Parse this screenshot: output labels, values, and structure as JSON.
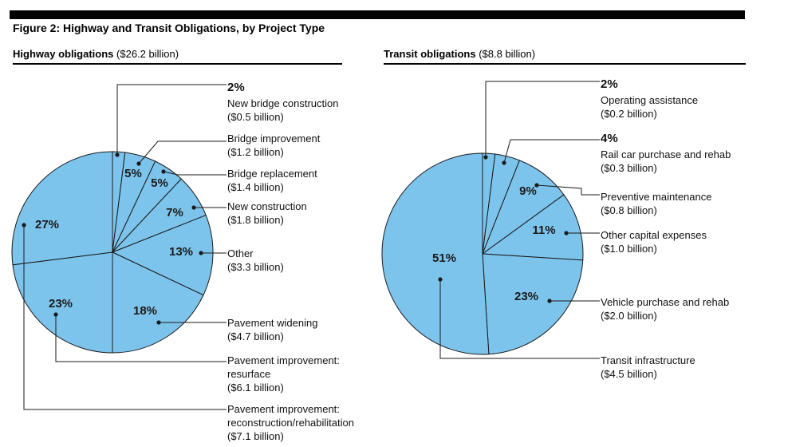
{
  "figure_title": "Figure 2: Highway and Transit Obligations, by Project Type",
  "highway": {
    "title_bold": "Highway obligations",
    "title_amount": "($26.2 billion)"
  },
  "transit": {
    "title_bold": "Transit obligations",
    "title_amount": "($8.8 billion)"
  },
  "colors": {
    "slice_fill": "#7dc4ec",
    "stroke": "#1a1a1a"
  },
  "chart_data": [
    {
      "type": "pie",
      "title": "Highway obligations ($26.2 billion)",
      "slices": [
        {
          "pct": 2,
          "pct_label": "",
          "category": "New bridge construction",
          "amount": "($0.5 billion)",
          "lines": [
            "2%",
            "New bridge construction",
            "($0.5 billion)"
          ]
        },
        {
          "pct": 5,
          "pct_label": "5%",
          "category": "Bridge improvement",
          "amount": "($1.2 billion)",
          "lines": [
            "Bridge improvement",
            "($1.2 billion)"
          ]
        },
        {
          "pct": 5,
          "pct_label": "5%",
          "category": "Bridge replacement",
          "amount": "($1.4 billion)",
          "lines": [
            "Bridge replacement",
            "($1.4 billion)"
          ]
        },
        {
          "pct": 7,
          "pct_label": "7%",
          "category": "New construction",
          "amount": "($1.8 billion)",
          "lines": [
            "New construction",
            "($1.8 billion)"
          ]
        },
        {
          "pct": 13,
          "pct_label": "13%",
          "category": "Other",
          "amount": "($3.3 billion)",
          "lines": [
            "Other",
            "($3.3 billion)"
          ]
        },
        {
          "pct": 18,
          "pct_label": "18%",
          "category": "Pavement widening",
          "amount": "($4.7 billion)",
          "lines": [
            "Pavement widening",
            "($4.7 billion)"
          ]
        },
        {
          "pct": 23,
          "pct_label": "23%",
          "category": "Pavement improvement: resurface",
          "amount": "($6.1 billion)",
          "lines": [
            "Pavement improvement:",
            "resurface",
            "($6.1 billion)"
          ]
        },
        {
          "pct": 27,
          "pct_label": "27%",
          "category": "Pavement improvement: reconstruction/rehabilitation",
          "amount": "($7.1 billion)",
          "lines": [
            "Pavement improvement:",
            "reconstruction/rehabilitation",
            "($7.1 billion)"
          ]
        }
      ]
    },
    {
      "type": "pie",
      "title": "Transit obligations ($8.8 billion)",
      "slices": [
        {
          "pct": 2,
          "pct_label": "",
          "category": "Operating assistance",
          "amount": "($0.2 billion)",
          "lines": [
            "2%",
            "Operating assistance",
            "($0.2 billion)"
          ]
        },
        {
          "pct": 4,
          "pct_label": "",
          "category": "Rail car purchase and rehab",
          "amount": "($0.3 billion)",
          "lines": [
            "4%",
            "Rail car purchase and rehab",
            "($0.3 billion)"
          ]
        },
        {
          "pct": 9,
          "pct_label": "9%",
          "category": "Preventive maintenance",
          "amount": "($0.8 billion)",
          "lines": [
            "Preventive maintenance",
            "($0.8 billion)"
          ]
        },
        {
          "pct": 11,
          "pct_label": "11%",
          "category": "Other capital expenses",
          "amount": "($1.0 billion)",
          "lines": [
            "Other capital expenses",
            "($1.0 billion)"
          ]
        },
        {
          "pct": 23,
          "pct_label": "23%",
          "category": "Vehicle purchase and rehab",
          "amount": "($2.0 billion)",
          "lines": [
            "Vehicle purchase and rehab",
            "($2.0 billion)"
          ]
        },
        {
          "pct": 51,
          "pct_label": "51%",
          "category": "Transit infrastructure",
          "amount": "($4.5 billion)",
          "lines": [
            "Transit infrastructure",
            "($4.5 billion)"
          ]
        }
      ]
    }
  ]
}
